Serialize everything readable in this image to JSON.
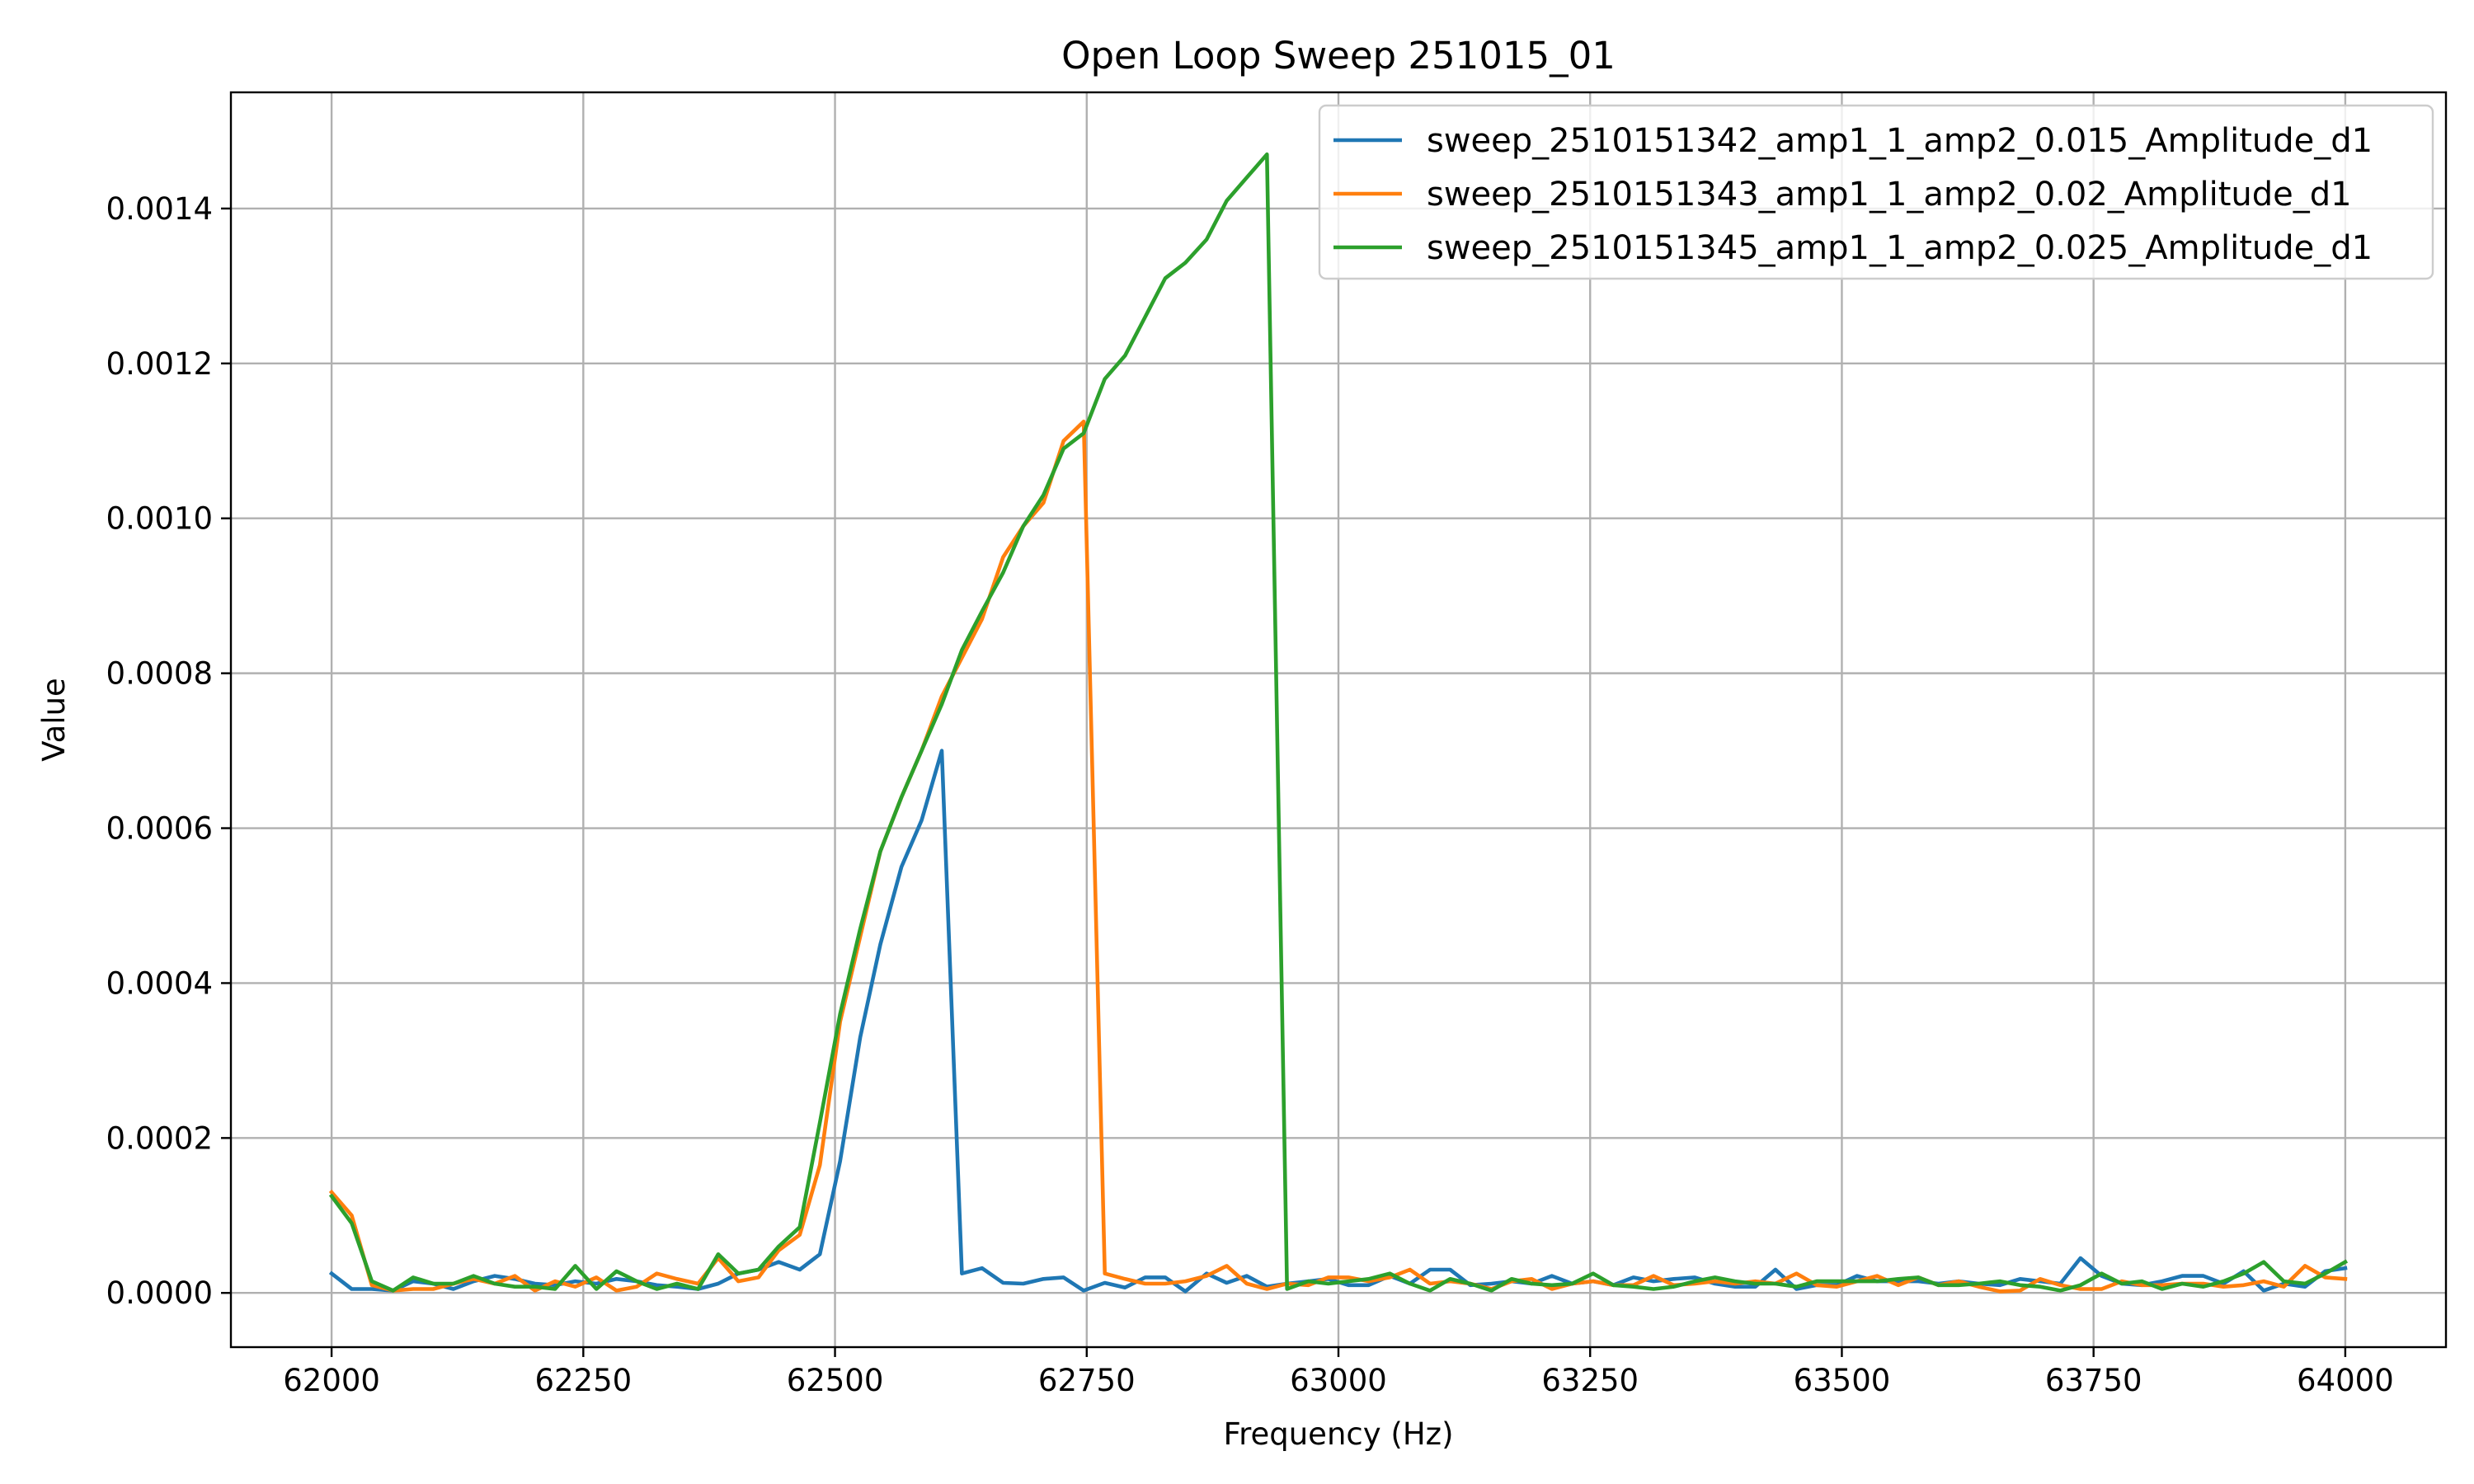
{
  "chart_data": {
    "type": "line",
    "title": "Open Loop Sweep 251015_01",
    "xlabel": "Frequency (Hz)",
    "ylabel": "Value",
    "xlim": [
      61900,
      64100
    ],
    "ylim": [
      -7e-05,
      0.00155
    ],
    "x_ticks": [
      62000,
      62250,
      62500,
      62750,
      63000,
      63250,
      63500,
      63750,
      64000
    ],
    "y_ticks": [
      0,
      0.0002,
      0.0004,
      0.0006,
      0.0008,
      0.001,
      0.0012,
      0.0014
    ],
    "y_tick_labels": [
      "0.0000",
      "0.0002",
      "0.0004",
      "0.0006",
      "0.0008",
      "0.0010",
      "0.0012",
      "0.0014"
    ],
    "grid": true,
    "legend_position": "top-right",
    "x": [
      62000,
      62020,
      62040,
      62061,
      62081,
      62101,
      62121,
      62141,
      62162,
      62182,
      62202,
      62222,
      62242,
      62263,
      62283,
      62303,
      62323,
      62343,
      62364,
      62384,
      62404,
      62424,
      62444,
      62465,
      62485,
      62505,
      62525,
      62545,
      62566,
      62586,
      62606,
      62626,
      62646,
      62667,
      62687,
      62707,
      62727,
      62747,
      62768,
      62788,
      62808,
      62828,
      62848,
      62869,
      62889,
      62909,
      62929,
      62949,
      62970,
      62990,
      63010,
      63030,
      63051,
      63071,
      63091,
      63111,
      63131,
      63152,
      63172,
      63192,
      63212,
      63232,
      63253,
      63273,
      63293,
      63313,
      63333,
      63354,
      63374,
      63394,
      63414,
      63434,
      63455,
      63475,
      63495,
      63515,
      63535,
      63556,
      63576,
      63596,
      63616,
      63636,
      63657,
      63677,
      63697,
      63717,
      63737,
      63758,
      63778,
      63798,
      63818,
      63838,
      63859,
      63879,
      63899,
      63919,
      63939,
      63960,
      63980,
      64000
    ],
    "series": [
      {
        "name": "sweep_2510151342_amp1_1_amp2_0.015_Amplitude_d1",
        "color": "#1f77b4",
        "values": [
          2.5e-05,
          5e-06,
          5e-06,
          3e-06,
          1.5e-05,
          1.2e-05,
          5e-06,
          1.5e-05,
          2.2e-05,
          1.8e-05,
          1.2e-05,
          1e-05,
          1.5e-05,
          1.2e-05,
          1.8e-05,
          1.5e-05,
          1e-05,
          8e-06,
          5e-06,
          1.2e-05,
          2.5e-05,
          3e-05,
          4e-05,
          3e-05,
          5e-05,
          0.00017,
          0.00033,
          0.00045,
          0.00055,
          0.00061,
          0.0007,
          2.5e-05,
          3.2e-05,
          1.3e-05,
          1.2e-05,
          1.8e-05,
          2e-05,
          3e-06,
          1.3e-05,
          7e-06,
          2e-05,
          2e-05,
          2e-06,
          2.5e-05,
          1.3e-05,
          2.2e-05,
          8e-06,
          1.2e-05,
          1.5e-05,
          1.8e-05,
          1e-05,
          1e-05,
          2.2e-05,
          1.2e-05,
          3e-05,
          3e-05,
          1e-05,
          1.2e-05,
          1.5e-05,
          1.2e-05,
          2.2e-05,
          1.2e-05,
          1.5e-05,
          1e-05,
          2e-05,
          1.5e-05,
          1.8e-05,
          2e-05,
          1.2e-05,
          8e-06,
          8e-06,
          3e-05,
          5e-06,
          1e-05,
          1e-05,
          2.2e-05,
          1.5e-05,
          1.5e-05,
          1.5e-05,
          1.2e-05,
          1.5e-05,
          1.2e-05,
          1e-05,
          1.8e-05,
          1.5e-05,
          1.2e-05,
          4.5e-05,
          2.2e-05,
          1.2e-05,
          1e-05,
          1.5e-05,
          2.2e-05,
          2.2e-05,
          1.2e-05,
          2.8e-05,
          3e-06,
          1.2e-05,
          8e-06,
          2.8e-05,
          3.2e-05
        ]
      },
      {
        "name": "sweep_2510151343_amp1_1_amp2_0.02_Amplitude_d1",
        "color": "#ff7f0e",
        "values": [
          0.00013,
          0.0001,
          1e-05,
          3e-06,
          5e-06,
          5e-06,
          1.2e-05,
          1.8e-05,
          1.2e-05,
          2.2e-05,
          3e-06,
          1.5e-05,
          8e-06,
          2e-05,
          3e-06,
          8e-06,
          2.5e-05,
          1.8e-05,
          1.2e-05,
          4.5e-05,
          1.5e-05,
          2e-05,
          5.5e-05,
          7.5e-05,
          0.000165,
          0.00035,
          0.00046,
          0.00057,
          0.00064,
          0.0007,
          0.00077,
          0.00082,
          0.00087,
          0.00095,
          0.00099,
          0.00102,
          0.0011,
          0.001125,
          2.5e-05,
          1.8e-05,
          1.2e-05,
          1.2e-05,
          1.5e-05,
          2.2e-05,
          3.5e-05,
          1.2e-05,
          5e-06,
          1.2e-05,
          1e-05,
          2e-05,
          2e-05,
          1.5e-05,
          2e-05,
          3e-05,
          1.2e-05,
          1.5e-05,
          1.2e-05,
          5e-06,
          1.5e-05,
          1.8e-05,
          5e-06,
          1.2e-05,
          1.5e-05,
          1e-05,
          1e-05,
          2.2e-05,
          1e-05,
          1.2e-05,
          1.5e-05,
          1.2e-05,
          1.5e-05,
          1.2e-05,
          2.5e-05,
          1e-05,
          8e-06,
          1.5e-05,
          2.2e-05,
          1e-05,
          2e-05,
          1e-05,
          1.5e-05,
          8e-06,
          2e-06,
          3e-06,
          1.8e-05,
          1e-05,
          5e-06,
          5e-06,
          1.5e-05,
          1e-05,
          1e-05,
          1.2e-05,
          1.2e-05,
          8e-06,
          1e-05,
          1.5e-05,
          8e-06,
          3.5e-05,
          2e-05,
          1.8e-05
        ]
      },
      {
        "name": "sweep_2510151345_amp1_1_amp2_0.025_Amplitude_d1",
        "color": "#2ca02c",
        "values": [
          0.000125,
          9e-05,
          1.5e-05,
          3e-06,
          2e-05,
          1.2e-05,
          1.2e-05,
          2.2e-05,
          1.2e-05,
          8e-06,
          8e-06,
          5e-06,
          3.5e-05,
          5e-06,
          2.8e-05,
          1.5e-05,
          5e-06,
          1.2e-05,
          5e-06,
          5e-05,
          2.5e-05,
          3e-05,
          6e-05,
          8.5e-05,
          0.00022,
          0.00036,
          0.00047,
          0.00057,
          0.00064,
          0.0007,
          0.00076,
          0.00083,
          0.00088,
          0.00093,
          0.00099,
          0.00103,
          0.00109,
          0.00111,
          0.00118,
          0.00121,
          0.00126,
          0.00131,
          0.00133,
          0.00136,
          0.00141,
          0.00144,
          0.00147,
          5e-06,
          1.5e-05,
          1.2e-05,
          1.5e-05,
          1.8e-05,
          2.5e-05,
          1.2e-05,
          3e-06,
          1.8e-05,
          1.2e-05,
          3e-06,
          1.8e-05,
          1.2e-05,
          1e-05,
          1.2e-05,
          2.5e-05,
          1e-05,
          8e-06,
          5e-06,
          8e-06,
          1.5e-05,
          2e-05,
          1.5e-05,
          1.2e-05,
          1.2e-05,
          8e-06,
          1.5e-05,
          1.5e-05,
          1.5e-05,
          1.5e-05,
          1.8e-05,
          2e-05,
          1e-05,
          1e-05,
          1.2e-05,
          1.5e-05,
          1e-05,
          8e-06,
          3e-06,
          1e-05,
          2.5e-05,
          1.2e-05,
          1.5e-05,
          5e-06,
          1.2e-05,
          8e-06,
          1.5e-05,
          2.5e-05,
          4e-05,
          1.5e-05,
          1.2e-05,
          2.5e-05,
          4e-05
        ]
      }
    ]
  }
}
